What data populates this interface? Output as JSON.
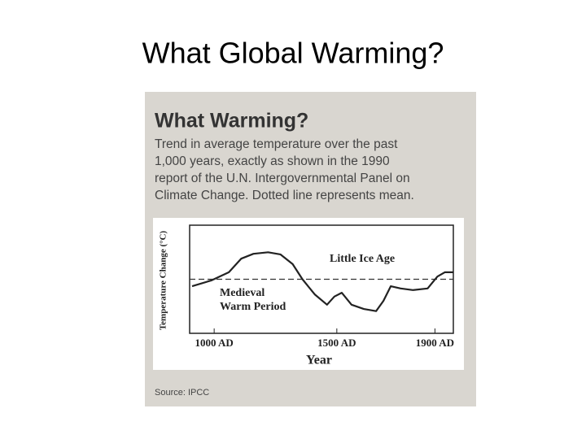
{
  "slide_title": "What Global Warming?",
  "chart_data": {
    "type": "line",
    "title": "What Warming?",
    "subtitle": [
      "Trend in average temperature over the past",
      "1,000 years, exactly as shown in the 1990",
      "report of the U.N. Intergovernmental Panel on",
      "Climate Change. Dotted line represents mean."
    ],
    "x_label": "Year",
    "y_label": "Temperature Change (°C)",
    "x": [
      910,
      990,
      1060,
      1110,
      1160,
      1220,
      1270,
      1320,
      1360,
      1410,
      1460,
      1490,
      1520,
      1560,
      1610,
      1660,
      1690,
      1720,
      1760,
      1810,
      1870,
      1910,
      1940,
      1975
    ],
    "values": [
      -0.13,
      -0.02,
      0.13,
      0.38,
      0.47,
      0.5,
      0.46,
      0.28,
      0.0,
      -0.28,
      -0.47,
      -0.32,
      -0.25,
      -0.47,
      -0.55,
      -0.59,
      -0.4,
      -0.13,
      -0.17,
      -0.2,
      -0.17,
      0.05,
      0.13,
      0.13
    ],
    "color": "#222222",
    "mean": 0,
    "xlim": [
      900,
      1975
    ],
    "ylim": [
      -1,
      1
    ],
    "xticks": [
      {
        "value": 1000,
        "label": "1000 AD"
      },
      {
        "value": 1500,
        "label": "1500 AD"
      },
      {
        "value": 1900,
        "label": "1900 AD"
      }
    ],
    "annotations": [
      [
        "Little Ice Age"
      ],
      [
        "Medieval",
        "Warm Period"
      ]
    ],
    "source": "Source: IPCC"
  }
}
